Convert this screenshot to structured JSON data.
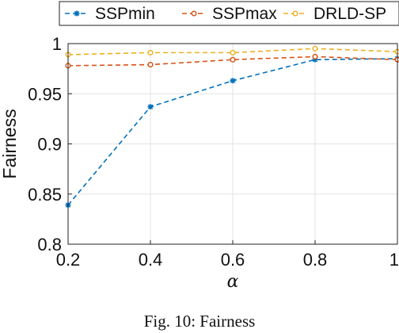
{
  "caption": "Fig. 10: Fairness",
  "colors": {
    "SSPmin": "#0072BD",
    "SSPmax": "#D95319",
    "DRLD-SP": "#EDB120",
    "grid": "#e3e3e3"
  },
  "chart_data": {
    "type": "line",
    "xlabel": "α",
    "ylabel": "Fairness",
    "xlim": [
      0.2,
      1
    ],
    "ylim": [
      0.8,
      1
    ],
    "grid": true,
    "legend_position": "top",
    "x_ticks": [
      "0.2",
      "0.4",
      "0.6",
      "0.8",
      "1"
    ],
    "y_ticks": [
      "0.8",
      "0.85",
      "0.9",
      "0.95",
      "1"
    ],
    "x": [
      0.2,
      0.4,
      0.6,
      0.8,
      1.0
    ],
    "series": [
      {
        "name": "SSPmin",
        "marker": "star",
        "values": [
          0.839,
          0.937,
          0.963,
          0.984,
          0.985
        ]
      },
      {
        "name": "SSPmax",
        "marker": "circle",
        "values": [
          0.978,
          0.979,
          0.984,
          0.987,
          0.984
        ]
      },
      {
        "name": "DRLD-SP",
        "marker": "circle",
        "values": [
          0.989,
          0.991,
          0.991,
          0.995,
          0.992
        ]
      }
    ]
  }
}
